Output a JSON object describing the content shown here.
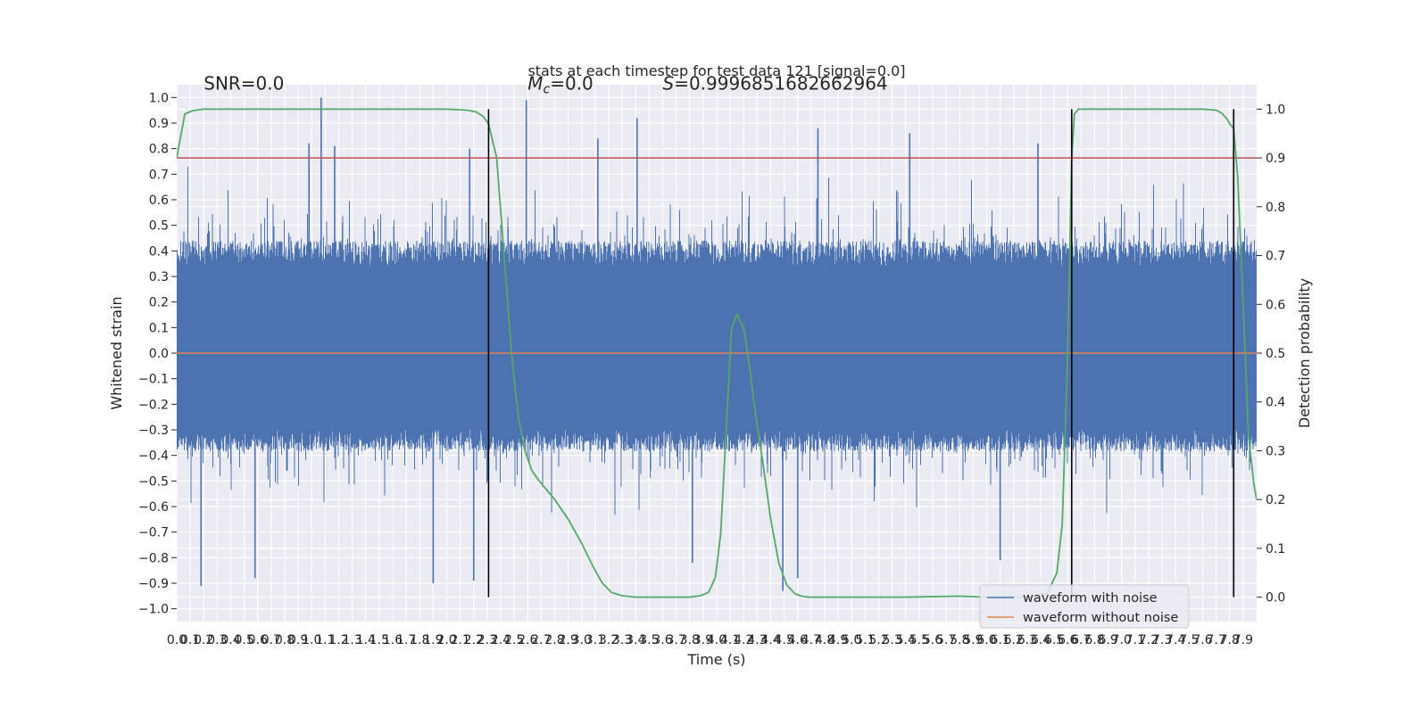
{
  "chart_data": {
    "type": "line",
    "title": "stats at each timestep for test data 121 [signal=0.0]",
    "xlabel": "Time (s)",
    "ylabel": "Whitened strain",
    "ylabel_right": "Detection probability",
    "xlim": [
      0.0,
      8.0
    ],
    "ylim": [
      -1.05,
      1.05
    ],
    "ylim_right": [
      -0.05,
      1.05
    ],
    "x_ticks": [
      0.0,
      0.1,
      0.2,
      0.3,
      0.4,
      0.5,
      0.6,
      0.7,
      0.8,
      0.9,
      1.0,
      1.1,
      1.2,
      1.3,
      1.4,
      1.5,
      1.6,
      1.7,
      1.8,
      1.9,
      2.0,
      2.1,
      2.2,
      2.3,
      2.4,
      2.5,
      2.6,
      2.7,
      2.8,
      2.9,
      3.0,
      3.1,
      3.2,
      3.3,
      3.4,
      3.5,
      3.6,
      3.7,
      3.8,
      3.9,
      4.0,
      4.1,
      4.2,
      4.3,
      4.4,
      4.5,
      4.6,
      4.7,
      4.8,
      4.9,
      5.0,
      5.1,
      5.2,
      5.3,
      5.4,
      5.5,
      5.6,
      5.7,
      5.8,
      5.9,
      6.0,
      6.1,
      6.2,
      6.3,
      6.4,
      6.5,
      6.6,
      6.7,
      6.8,
      6.9,
      7.0,
      7.1,
      7.2,
      7.3,
      7.4,
      7.5,
      7.6,
      7.7,
      7.8,
      7.9
    ],
    "y_ticks": [
      -1.0,
      -0.9,
      -0.8,
      -0.7,
      -0.6,
      -0.5,
      -0.4,
      -0.3,
      -0.2,
      -0.1,
      0.0,
      0.1,
      0.2,
      0.3,
      0.4,
      0.5,
      0.6,
      0.7,
      0.8,
      0.9,
      1.0
    ],
    "y_ticks_right": [
      0.0,
      0.1,
      0.2,
      0.3,
      0.4,
      0.5,
      0.6,
      0.7,
      0.8,
      0.9,
      1.0
    ],
    "threshold_y": 0.9,
    "vertical_lines_x": [
      2.31,
      6.63,
      7.83
    ],
    "annotations": [
      {
        "text": "SNR=0.0",
        "x": 0.2,
        "y": 1.03
      },
      {
        "text": "Mc",
        "suffix": "=0.0",
        "x": 2.6,
        "y": 1.03
      },
      {
        "text": "S=0.9996851682662964",
        "x": 3.6,
        "y": 1.03
      }
    ],
    "series": [
      {
        "name": "waveform with noise",
        "color": "#4c72b0",
        "envelope": true,
        "sample_rate": 4096,
        "rms": 0.17,
        "bulk_band": [
          -0.35,
          0.4
        ],
        "spikes": [
          {
            "x": 1.07,
            "y": 1.0
          },
          {
            "x": 2.59,
            "y": 0.99
          },
          {
            "x": 3.41,
            "y": 0.92
          },
          {
            "x": 4.49,
            "y": -0.93
          },
          {
            "x": 4.6,
            "y": -0.88
          },
          {
            "x": 5.43,
            "y": 0.86
          },
          {
            "x": 6.38,
            "y": 0.82
          },
          {
            "x": 0.98,
            "y": 0.82
          },
          {
            "x": 1.17,
            "y": 0.81
          },
          {
            "x": 0.18,
            "y": -0.91
          },
          {
            "x": 1.9,
            "y": -0.9
          },
          {
            "x": 2.2,
            "y": -0.89
          },
          {
            "x": 0.58,
            "y": -0.88
          },
          {
            "x": 3.82,
            "y": -0.82
          },
          {
            "x": 6.1,
            "y": -0.81
          },
          {
            "x": 3.12,
            "y": 0.84
          },
          {
            "x": 4.75,
            "y": 0.88
          },
          {
            "x": 2.17,
            "y": 0.8
          }
        ]
      },
      {
        "name": "waveform without noise",
        "color": "#dd8452",
        "x": [
          0.0,
          8.0
        ],
        "y": [
          0.0,
          0.0
        ]
      },
      {
        "name": "detection probability",
        "color": "#55a868",
        "axis": "right",
        "x": [
          0.0,
          0.06,
          0.12,
          0.2,
          0.4,
          0.8,
          1.2,
          1.6,
          2.0,
          2.15,
          2.22,
          2.27,
          2.31,
          2.37,
          2.42,
          2.48,
          2.53,
          2.58,
          2.63,
          2.68,
          2.74,
          2.8,
          2.9,
          3.0,
          3.08,
          3.15,
          3.22,
          3.3,
          3.4,
          3.6,
          3.8,
          3.88,
          3.94,
          3.99,
          4.03,
          4.07,
          4.11,
          4.15,
          4.2,
          4.24,
          4.28,
          4.34,
          4.4,
          4.46,
          4.52,
          4.58,
          4.63,
          4.68,
          4.74,
          4.85,
          5.0,
          5.4,
          5.8,
          6.0,
          6.2,
          6.35,
          6.45,
          6.52,
          6.56,
          6.6,
          6.63,
          6.65,
          6.68,
          6.72,
          6.8,
          7.0,
          7.4,
          7.6,
          7.7,
          7.74,
          7.78,
          7.8,
          7.83,
          7.86,
          7.9,
          7.94,
          7.98,
          8.0
        ],
        "y": [
          0.9,
          0.99,
          0.997,
          1.0,
          1.0,
          1.0,
          1.0,
          1.0,
          1.0,
          0.998,
          0.994,
          0.985,
          0.97,
          0.9,
          0.72,
          0.5,
          0.37,
          0.3,
          0.26,
          0.24,
          0.22,
          0.2,
          0.16,
          0.11,
          0.065,
          0.03,
          0.01,
          0.003,
          0.0,
          0.0,
          0.0,
          0.003,
          0.01,
          0.04,
          0.13,
          0.34,
          0.55,
          0.58,
          0.55,
          0.48,
          0.39,
          0.28,
          0.16,
          0.07,
          0.025,
          0.007,
          0.002,
          0.0,
          0.0,
          0.0,
          0.0,
          0.0,
          0.002,
          0.0,
          0.0,
          0.0,
          0.008,
          0.05,
          0.15,
          0.5,
          0.9,
          0.99,
          1.0,
          1.0,
          1.0,
          1.0,
          1.0,
          1.0,
          0.998,
          0.992,
          0.98,
          0.97,
          0.96,
          0.86,
          0.6,
          0.33,
          0.23,
          0.2
        ]
      }
    ],
    "legend_entries": [
      "waveform with noise",
      "waveform without noise"
    ],
    "legend": "lower-right",
    "grid": true,
    "style": "seaborn-darkgrid",
    "colors": {
      "background": "#eaeaf2",
      "grid": "#ffffff",
      "noise": "#4c72b0",
      "clean": "#dd8452",
      "probability": "#55a868",
      "threshold": "#c44e52",
      "vline": "#000000"
    }
  }
}
